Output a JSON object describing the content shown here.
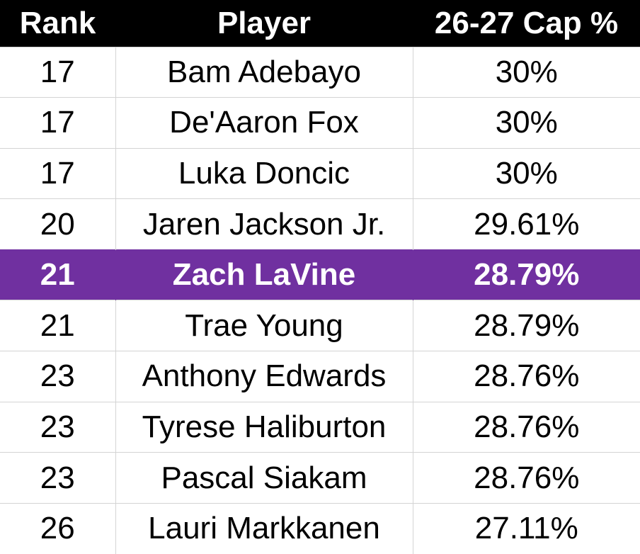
{
  "colors": {
    "header_bg": "#000000",
    "header_text": "#ffffff",
    "highlight_bg": "#7030a0",
    "highlight_text": "#ffffff",
    "grid_line": "#d4d4d4"
  },
  "table": {
    "headers": [
      "Rank",
      "Player",
      "26-27 Cap %"
    ],
    "highlighted_row_index": 4,
    "rows": [
      {
        "rank": "17",
        "player": "Bam Adebayo",
        "cap": "30%"
      },
      {
        "rank": "17",
        "player": "De'Aaron Fox",
        "cap": "30%"
      },
      {
        "rank": "17",
        "player": "Luka Doncic",
        "cap": "30%"
      },
      {
        "rank": "20",
        "player": "Jaren Jackson Jr.",
        "cap": "29.61%"
      },
      {
        "rank": "21",
        "player": "Zach LaVine",
        "cap": "28.79%"
      },
      {
        "rank": "21",
        "player": "Trae Young",
        "cap": "28.79%"
      },
      {
        "rank": "23",
        "player": "Anthony Edwards",
        "cap": "28.76%"
      },
      {
        "rank": "23",
        "player": "Tyrese Haliburton",
        "cap": "28.76%"
      },
      {
        "rank": "23",
        "player": "Pascal Siakam",
        "cap": "28.76%"
      },
      {
        "rank": "26",
        "player": "Lauri Markkanen",
        "cap": "27.11%"
      }
    ]
  }
}
